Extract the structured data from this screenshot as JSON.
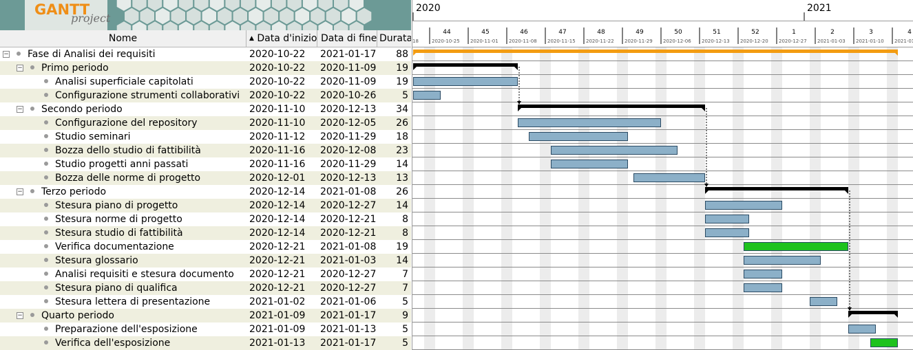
{
  "logo": {
    "mark": "GANTT",
    "sub": "project"
  },
  "columns": {
    "name": "Nome",
    "start": "Data d'inizio",
    "end": "Data di fine",
    "duration": "Durata"
  },
  "sort_icon": "sort-ascending-icon",
  "timeline": {
    "years": [
      "2020",
      "2021"
    ],
    "weeks": [
      {
        "num": "44",
        "date": "2020-10-25"
      },
      {
        "num": "45",
        "date": "2020-11-01"
      },
      {
        "num": "46",
        "date": "2020-11-08"
      },
      {
        "num": "47",
        "date": "2020-11-15"
      },
      {
        "num": "48",
        "date": "2020-11-22"
      },
      {
        "num": "49",
        "date": "2020-11-29"
      },
      {
        "num": "50",
        "date": "2020-12-06"
      },
      {
        "num": "51",
        "date": "2020-12-13"
      },
      {
        "num": "52",
        "date": "2020-12-20"
      },
      {
        "num": "1",
        "date": "2020-12-27"
      },
      {
        "num": "2",
        "date": "2021-01-03"
      },
      {
        "num": "3",
        "date": "2021-01-10"
      },
      {
        "num": "4",
        "date": "2021-01-"
      }
    ],
    "lead_date": "18"
  },
  "colors": {
    "summary": "#000000",
    "project": "#f39c12",
    "task": "#8cb0c8",
    "milestone_task": "#1ec21e",
    "alt_row": "#efefdf"
  },
  "tasks": [
    {
      "name": "Fase di Analisi dei requisiti",
      "start": "2020-10-22",
      "end": "2021-01-17",
      "duration": "88",
      "level": 0,
      "group": true,
      "kind": "project"
    },
    {
      "name": "Primo periodo",
      "start": "2020-10-22",
      "end": "2020-11-09",
      "duration": "19",
      "level": 1,
      "group": true,
      "kind": "summary"
    },
    {
      "name": "Analisi superficiale capitolati",
      "start": "2020-10-22",
      "end": "2020-11-09",
      "duration": "19",
      "level": 2,
      "group": false,
      "kind": "task"
    },
    {
      "name": "Configurazione strumenti collaborativi",
      "start": "2020-10-22",
      "end": "2020-10-26",
      "duration": "5",
      "level": 2,
      "group": false,
      "kind": "task"
    },
    {
      "name": "Secondo periodo",
      "start": "2020-11-10",
      "end": "2020-12-13",
      "duration": "34",
      "level": 1,
      "group": true,
      "kind": "summary"
    },
    {
      "name": "Configurazione del repository",
      "start": "2020-11-10",
      "end": "2020-12-05",
      "duration": "26",
      "level": 2,
      "group": false,
      "kind": "task"
    },
    {
      "name": "Studio seminari",
      "start": "2020-11-12",
      "end": "2020-11-29",
      "duration": "18",
      "level": 2,
      "group": false,
      "kind": "task"
    },
    {
      "name": "Bozza dello studio di fattibilità",
      "start": "2020-11-16",
      "end": "2020-12-08",
      "duration": "23",
      "level": 2,
      "group": false,
      "kind": "task"
    },
    {
      "name": "Studio progetti anni passati",
      "start": "2020-11-16",
      "end": "2020-11-29",
      "duration": "14",
      "level": 2,
      "group": false,
      "kind": "task"
    },
    {
      "name": "Bozza delle norme di progetto",
      "start": "2020-12-01",
      "end": "2020-12-13",
      "duration": "13",
      "level": 2,
      "group": false,
      "kind": "task"
    },
    {
      "name": "Terzo periodo",
      "start": "2020-12-14",
      "end": "2021-01-08",
      "duration": "26",
      "level": 1,
      "group": true,
      "kind": "summary"
    },
    {
      "name": "Stesura piano di progetto",
      "start": "2020-12-14",
      "end": "2020-12-27",
      "duration": "14",
      "level": 2,
      "group": false,
      "kind": "task"
    },
    {
      "name": "Stesura norme di progetto",
      "start": "2020-12-14",
      "end": "2020-12-21",
      "duration": "8",
      "level": 2,
      "group": false,
      "kind": "task"
    },
    {
      "name": "Stesura studio di fattibilità",
      "start": "2020-12-14",
      "end": "2020-12-21",
      "duration": "8",
      "level": 2,
      "group": false,
      "kind": "task"
    },
    {
      "name": "Verifica documentazione",
      "start": "2020-12-21",
      "end": "2021-01-08",
      "duration": "19",
      "level": 2,
      "group": false,
      "kind": "green"
    },
    {
      "name": "Stesura glossario",
      "start": "2020-12-21",
      "end": "2021-01-03",
      "duration": "14",
      "level": 2,
      "group": false,
      "kind": "task"
    },
    {
      "name": "Analisi requisiti e stesura documento",
      "start": "2020-12-21",
      "end": "2020-12-27",
      "duration": "7",
      "level": 2,
      "group": false,
      "kind": "task"
    },
    {
      "name": "Stesura piano di qualifica",
      "start": "2020-12-21",
      "end": "2020-12-27",
      "duration": "7",
      "level": 2,
      "group": false,
      "kind": "task"
    },
    {
      "name": "Stesura lettera di presentazione",
      "start": "2021-01-02",
      "end": "2021-01-06",
      "duration": "5",
      "level": 2,
      "group": false,
      "kind": "task"
    },
    {
      "name": "Quarto periodo",
      "start": "2021-01-09",
      "end": "2021-01-17",
      "duration": "9",
      "level": 1,
      "group": true,
      "kind": "summary"
    },
    {
      "name": "Preparazione dell'esposizione",
      "start": "2021-01-09",
      "end": "2021-01-13",
      "duration": "5",
      "level": 2,
      "group": false,
      "kind": "task"
    },
    {
      "name": "Verifica dell'esposizione",
      "start": "2021-01-13",
      "end": "2021-01-17",
      "duration": "5",
      "level": 2,
      "group": false,
      "kind": "green"
    }
  ],
  "dependencies": [
    [
      1,
      4
    ],
    [
      4,
      10
    ],
    [
      10,
      19
    ]
  ]
}
